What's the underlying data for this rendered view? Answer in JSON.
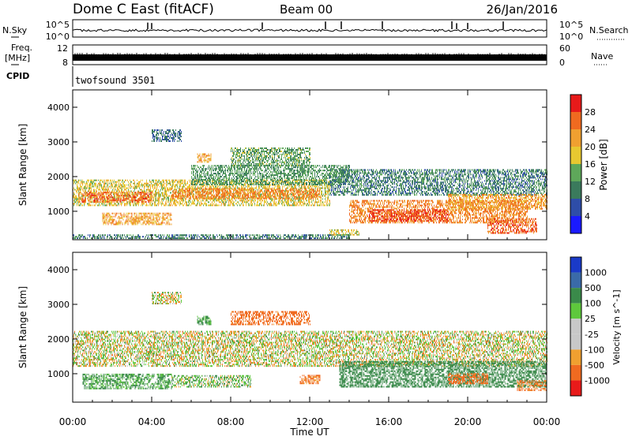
{
  "header": {
    "station": "Dome C East (fitACF)",
    "beam": "Beam 00",
    "date": "26/Jan/2016"
  },
  "meta_panels": {
    "nsky_label": "N.Sky",
    "nsky_ticks": [
      "10^5",
      "10^0"
    ],
    "nsearch_label": "N.Search",
    "freq_label_1": "Freq.",
    "freq_label_2": "[MHz]",
    "freq_ticks": [
      "12",
      "8"
    ],
    "nave_label": "Nave",
    "nave_ticks": [
      "60",
      "0"
    ],
    "cpid_label": "CPID",
    "cpid_value": "twofsound 3501"
  },
  "colors": {
    "power_scale": [
      "#1a1aff",
      "#2e4da8",
      "#3a7a5c",
      "#5ea85a",
      "#e8c830",
      "#f0a030",
      "#f06a20",
      "#e81a1a"
    ],
    "velocity_scale": [
      "#e81a1a",
      "#f06a20",
      "#f0a030",
      "#c8c8c8",
      "#c8c8c8",
      "#5ec83c",
      "#3a8a4a",
      "#3a6aa8",
      "#1a3ac8"
    ],
    "ground_scatter": "#c0c0c0"
  },
  "chart_data": [
    {
      "type": "heatmap",
      "title": "Power",
      "xlabel": "",
      "ylabel": "Slant Range [km]",
      "colorbar_label": "Power [dB]",
      "colorbar_ticks": [
        "28",
        "24",
        "20",
        "16",
        "12",
        "8",
        "4"
      ],
      "colorbar_range": [
        0,
        32
      ],
      "x_ticks": [
        "00:00",
        "04:00",
        "08:00",
        "12:00",
        "16:00",
        "20:00",
        "00:00"
      ],
      "xlim_hours": [
        0,
        24
      ],
      "y_ticks": [
        "4000",
        "3000",
        "2000",
        "1000"
      ],
      "ylim_km": [
        180,
        4500
      ],
      "regions": [
        {
          "t0": 0.0,
          "t1": 13.0,
          "r0": 1150,
          "r1": 1900,
          "value": 18
        },
        {
          "t0": 5.0,
          "t1": 12.5,
          "r0": 1350,
          "r1": 1650,
          "value": 24
        },
        {
          "t0": 0.3,
          "t1": 4.0,
          "r0": 1250,
          "r1": 1550,
          "value": 26
        },
        {
          "t0": 1.5,
          "t1": 5.0,
          "r0": 600,
          "r1": 950,
          "value": 22
        },
        {
          "t0": 6.0,
          "t1": 14.0,
          "r0": 1750,
          "r1": 2300,
          "value": 12
        },
        {
          "t0": 8.0,
          "t1": 12.0,
          "r0": 2300,
          "r1": 2800,
          "value": 13
        },
        {
          "t0": 6.3,
          "t1": 7.0,
          "r0": 2400,
          "r1": 2650,
          "value": 22
        },
        {
          "t0": 4.0,
          "t1": 5.5,
          "r0": 3000,
          "r1": 3350,
          "value": 8
        },
        {
          "t0": 13.0,
          "t1": 24.0,
          "r0": 1450,
          "r1": 2200,
          "value": 10
        },
        {
          "t0": 14.0,
          "t1": 23.0,
          "r0": 650,
          "r1": 1300,
          "value": 24
        },
        {
          "t0": 15.0,
          "t1": 19.0,
          "r0": 700,
          "r1": 1050,
          "value": 28
        },
        {
          "t0": 21.0,
          "t1": 23.5,
          "r0": 350,
          "r1": 800,
          "value": 26
        },
        {
          "t0": 19.0,
          "t1": 24.0,
          "r0": 1050,
          "r1": 1500,
          "value": 22
        },
        {
          "t0": 13.0,
          "t1": 14.5,
          "r0": 300,
          "r1": 450,
          "value": 18
        },
        {
          "t0": 0.0,
          "t1": 14.0,
          "r0": 200,
          "r1": 320,
          "value": 10
        }
      ]
    },
    {
      "type": "heatmap",
      "title": "Velocity",
      "xlabel": "Time UT",
      "ylabel": "Slant Range [km]",
      "colorbar_label": "Velocity [m s^-1]",
      "colorbar_ticks": [
        "1000",
        "500",
        "100",
        "25",
        "-25",
        "-100",
        "-500",
        "-1000"
      ],
      "colorbar_range": [
        -1200,
        1200
      ],
      "x_ticks": [
        "00:00",
        "04:00",
        "08:00",
        "12:00",
        "16:00",
        "20:00",
        "00:00"
      ],
      "xlim_hours": [
        0,
        24
      ],
      "y_ticks": [
        "4000",
        "3000",
        "2000",
        "1000"
      ],
      "ylim_km": [
        180,
        4500
      ],
      "regions": [
        {
          "t0": 0.0,
          "t1": 24.0,
          "r0": 1200,
          "r1": 2200,
          "value": 0
        },
        {
          "t0": 0.5,
          "t1": 5.0,
          "r0": 550,
          "r1": 1000,
          "value": 150
        },
        {
          "t0": 5.0,
          "t1": 9.0,
          "r0": 600,
          "r1": 950,
          "value": 60
        },
        {
          "t0": 6.3,
          "t1": 7.0,
          "r0": 2400,
          "r1": 2650,
          "value": 150
        },
        {
          "t0": 8.0,
          "t1": 12.0,
          "r0": 2400,
          "r1": 2800,
          "value": -200
        },
        {
          "t0": 13.5,
          "t1": 24.0,
          "r0": 600,
          "r1": 1350,
          "value": 300
        },
        {
          "t0": 19.0,
          "t1": 21.0,
          "r0": 700,
          "r1": 1000,
          "value": -200
        },
        {
          "t0": 4.0,
          "t1": 5.5,
          "r0": 3000,
          "r1": 3350,
          "value": 0
        },
        {
          "t0": 11.5,
          "t1": 12.5,
          "r0": 700,
          "r1": 950,
          "value": -150
        },
        {
          "t0": 22.5,
          "t1": 24.0,
          "r0": 500,
          "r1": 800,
          "value": -150
        }
      ]
    }
  ]
}
